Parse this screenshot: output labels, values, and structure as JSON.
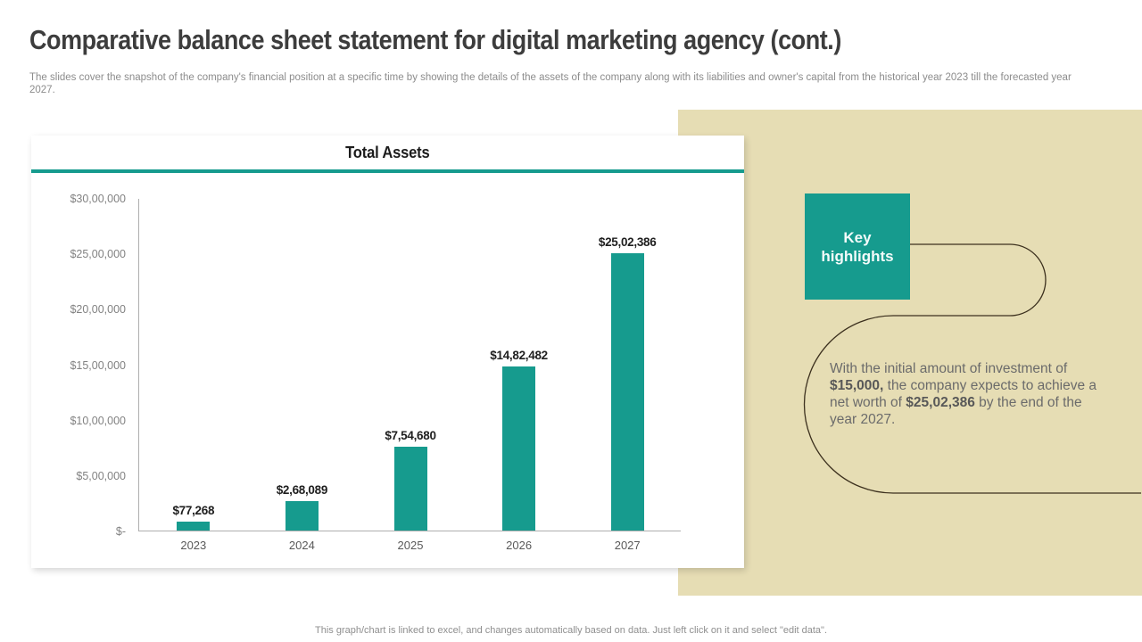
{
  "slide": {
    "title": "Comparative balance sheet statement for digital marketing agency (cont.)",
    "subtitle": "The slides cover the snapshot of the company's financial position at a specific time by showing the details of the assets of the company along with its liabilities and owner's capital from the historical year 2023 till the forecasted year 2027.",
    "footer": "This graph/chart is linked to excel,  and changes automatically based on data. Just left click on it and select \"edit data\"."
  },
  "chart_data": {
    "type": "bar",
    "title": "Total Assets",
    "categories": [
      "2023",
      "2024",
      "2025",
      "2026",
      "2027"
    ],
    "values": [
      77268,
      268089,
      754680,
      1482482,
      2502386
    ],
    "value_labels": [
      "$77,268",
      "$2,68,089",
      "$7,54,680",
      "$14,82,482",
      "$25,02,386"
    ],
    "xlabel": "",
    "ylabel": "",
    "ylim": [
      0,
      3000000
    ],
    "yticks": [
      {
        "label": "$30,00,000",
        "value": 3000000
      },
      {
        "label": "$25,00,000",
        "value": 2500000
      },
      {
        "label": "$20,00,000",
        "value": 2000000
      },
      {
        "label": "$15,00,000",
        "value": 1500000
      },
      {
        "label": "$10,00,000",
        "value": 1000000
      },
      {
        "label": "$5,00,000",
        "value": 500000
      },
      {
        "label": "$-",
        "value": 0
      }
    ],
    "grid": false,
    "legend": false,
    "bar_color": "#169b8e"
  },
  "key_highlights": {
    "title": "Key highlights",
    "note_parts": [
      {
        "text": "With the initial amount of investment  of ",
        "bold": false
      },
      {
        "text": "$15,000,",
        "bold": true
      },
      {
        "text": " the company expects to achieve a net worth of ",
        "bold": false
      },
      {
        "text": "$25,02,386",
        "bold": true
      },
      {
        "text": " by the end of the year 2027.",
        "bold": false
      }
    ]
  },
  "colors": {
    "accent": "#169b8e",
    "panel_beige": "#e6ddb4",
    "connector_line": "#3c301e",
    "axis_line": "#aeaeae"
  }
}
